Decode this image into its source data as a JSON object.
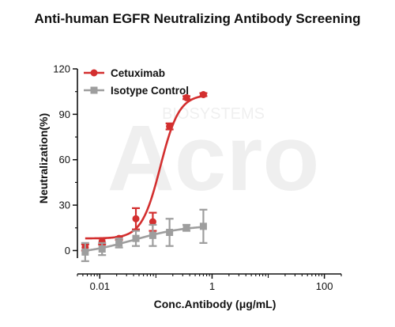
{
  "chart_data": {
    "type": "scatter",
    "title": "Anti-human EGFR Neutralizing Antibody Screening",
    "xlabel": "Conc.Antibody (μg/mL)",
    "ylabel": "Neutralization(%)",
    "xscale": "log",
    "xlim": [
      0.004,
      200
    ],
    "ylim": [
      -5,
      120
    ],
    "x_ticks": [
      0.01,
      1,
      100
    ],
    "x_tick_labels": [
      "0.01",
      "1",
      "100"
    ],
    "y_ticks": [
      0,
      30,
      60,
      90,
      120
    ],
    "y_tick_labels": [
      "0",
      "30",
      "60",
      "90",
      "120"
    ],
    "legend_position": "top-left",
    "watermark": {
      "text": "Acro",
      "subtext": "BIOSYSTEMS"
    },
    "series": [
      {
        "name": "Cetuximab",
        "color": "#d32f2f",
        "marker": "circle",
        "fit": "sigmoidal",
        "points": [
          {
            "x": 0.0055,
            "y": 2,
            "err": 2
          },
          {
            "x": 0.011,
            "y": 6,
            "err": 2
          },
          {
            "x": 0.022,
            "y": 8,
            "err": 1
          },
          {
            "x": 0.044,
            "y": 21,
            "err": 7
          },
          {
            "x": 0.088,
            "y": 19,
            "err": 6
          },
          {
            "x": 0.175,
            "y": 82,
            "err": 2
          },
          {
            "x": 0.35,
            "y": 101,
            "err": 1
          },
          {
            "x": 0.7,
            "y": 103,
            "err": 1
          }
        ],
        "curve": {
          "bottom": 8,
          "top": 103,
          "ec50": 0.12,
          "hill": 2.6
        }
      },
      {
        "name": "Isotype Control",
        "color": "#9e9e9e",
        "marker": "square",
        "fit": "sigmoidal",
        "points": [
          {
            "x": 0.0055,
            "y": -1,
            "err": 6
          },
          {
            "x": 0.011,
            "y": 1,
            "err": 4
          },
          {
            "x": 0.022,
            "y": 5,
            "err": 3
          },
          {
            "x": 0.044,
            "y": 8,
            "err": 5
          },
          {
            "x": 0.088,
            "y": 10,
            "err": 7
          },
          {
            "x": 0.175,
            "y": 12,
            "err": 9
          },
          {
            "x": 0.35,
            "y": 15,
            "err": 2
          },
          {
            "x": 0.7,
            "y": 16,
            "err": 11
          }
        ],
        "curve": {
          "bottom": -3,
          "top": 17,
          "ec50": 0.04,
          "hill": 0.9
        }
      }
    ]
  }
}
